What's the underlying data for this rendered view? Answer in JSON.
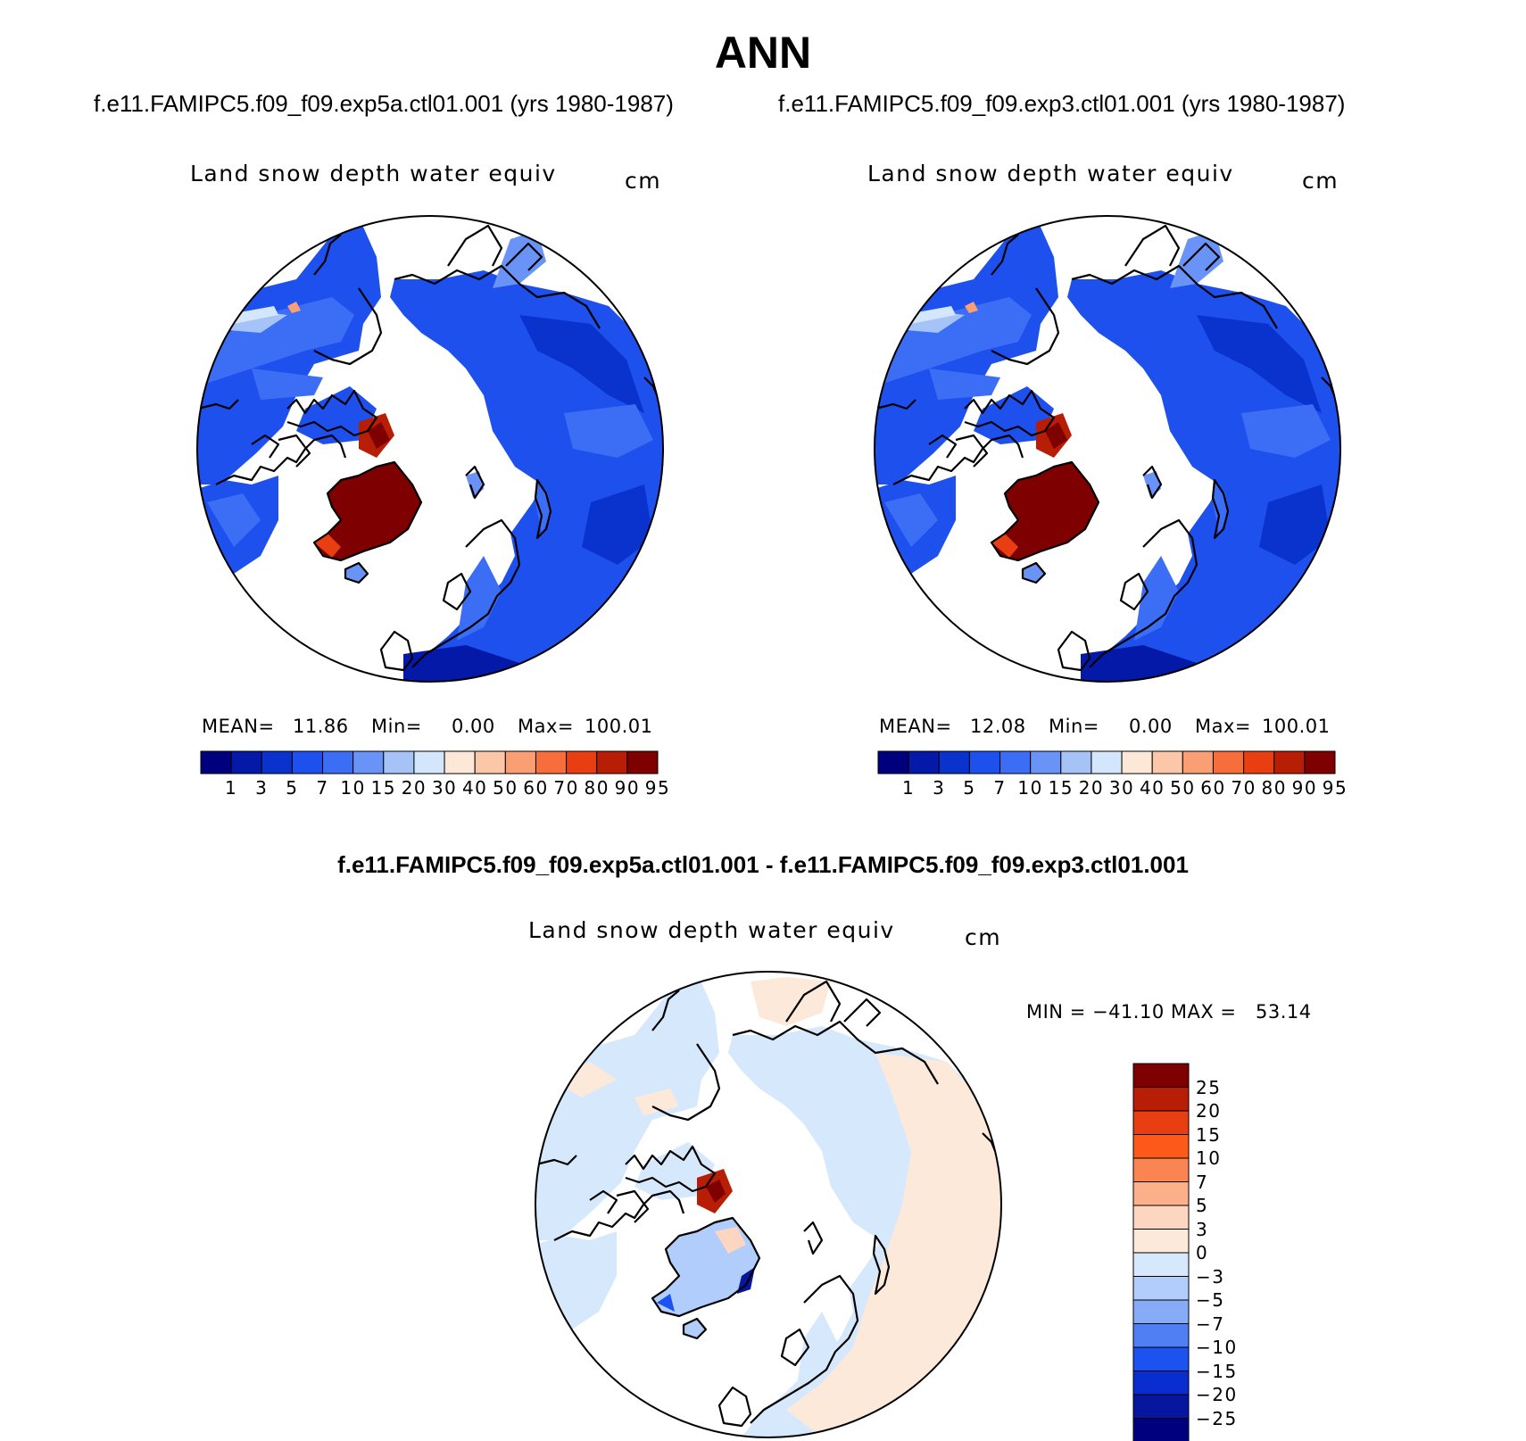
{
  "header": {
    "title": "ANN",
    "case_a": "f.e11.FAMIPC5.f09_f09.exp5a.ctl01.001 (yrs 1980-1987)",
    "case_b": "f.e11.FAMIPC5.f09_f09.exp3.ctl01.001 (yrs 1980-1987)",
    "diff_title": "f.e11.FAMIPC5.f09_f09.exp5a.ctl01.001 - f.e11.FAMIPC5.f09_f09.exp3.ctl01.001"
  },
  "panel_a": {
    "variable": "Land snow depth water equiv",
    "units": "cm",
    "mean_label": "MEAN=",
    "mean_value": "11.86",
    "min_label": "Min=",
    "min_value": "0.00",
    "max_label": "Max=",
    "max_value": "100.01"
  },
  "panel_b": {
    "variable": "Land snow depth water equiv",
    "units": "cm",
    "mean_label": "MEAN=",
    "mean_value": "12.08",
    "min_label": "Min=",
    "min_value": "0.00",
    "max_label": "Max=",
    "max_value": "100.01"
  },
  "panel_diff": {
    "variable": "Land snow depth water equiv",
    "units": "cm",
    "minmax": "MIN = −41.10 MAX =   53.14"
  },
  "colorbar_abs": {
    "labels": [
      "1",
      "3",
      "5",
      "7",
      "10",
      "15",
      "20",
      "30",
      "40",
      "50",
      "60",
      "70",
      "80",
      "90",
      "95"
    ],
    "colors": [
      "#00007f",
      "#0519a8",
      "#0a32cd",
      "#1e50ee",
      "#3c6ef5",
      "#6a93f7",
      "#a6c3f8",
      "#d4e6fc",
      "#fde7d7",
      "#fcc7a8",
      "#fa9e74",
      "#f86d3c",
      "#e83e12",
      "#b81d06",
      "#7f0000"
    ]
  },
  "colorbar_diff": {
    "labels": [
      "25",
      "20",
      "15",
      "10",
      "7",
      "5",
      "3",
      "0",
      "−3",
      "−5",
      "−7",
      "−10",
      "−15",
      "−20",
      "−25"
    ],
    "colors": [
      "#7f0000",
      "#b81d06",
      "#e83e12",
      "#fd5a1a",
      "#fa8452",
      "#fbb08a",
      "#fcd6c0",
      "#fde9d9",
      "#d6e8fc",
      "#b0cdfb",
      "#86acf8",
      "#4f7ff3",
      "#1c52f0",
      "#0a2dd0",
      "#06169e",
      "#00007f"
    ]
  }
}
